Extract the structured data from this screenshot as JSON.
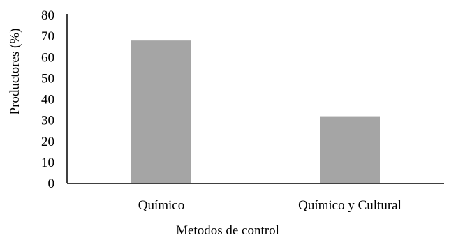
{
  "chart_data": {
    "type": "bar",
    "title": "",
    "xlabel": "Metodos de control",
    "ylabel": "Productores (%)",
    "categories": [
      "Químico",
      "Químico y Cultural"
    ],
    "values": [
      68,
      32
    ],
    "ylim": [
      0,
      80
    ],
    "yticks": [
      0,
      10,
      20,
      30,
      40,
      50,
      60,
      70,
      80
    ],
    "grid": false,
    "legend": "none",
    "bar_color": "#a5a5a5",
    "axis_color": "#000000"
  }
}
